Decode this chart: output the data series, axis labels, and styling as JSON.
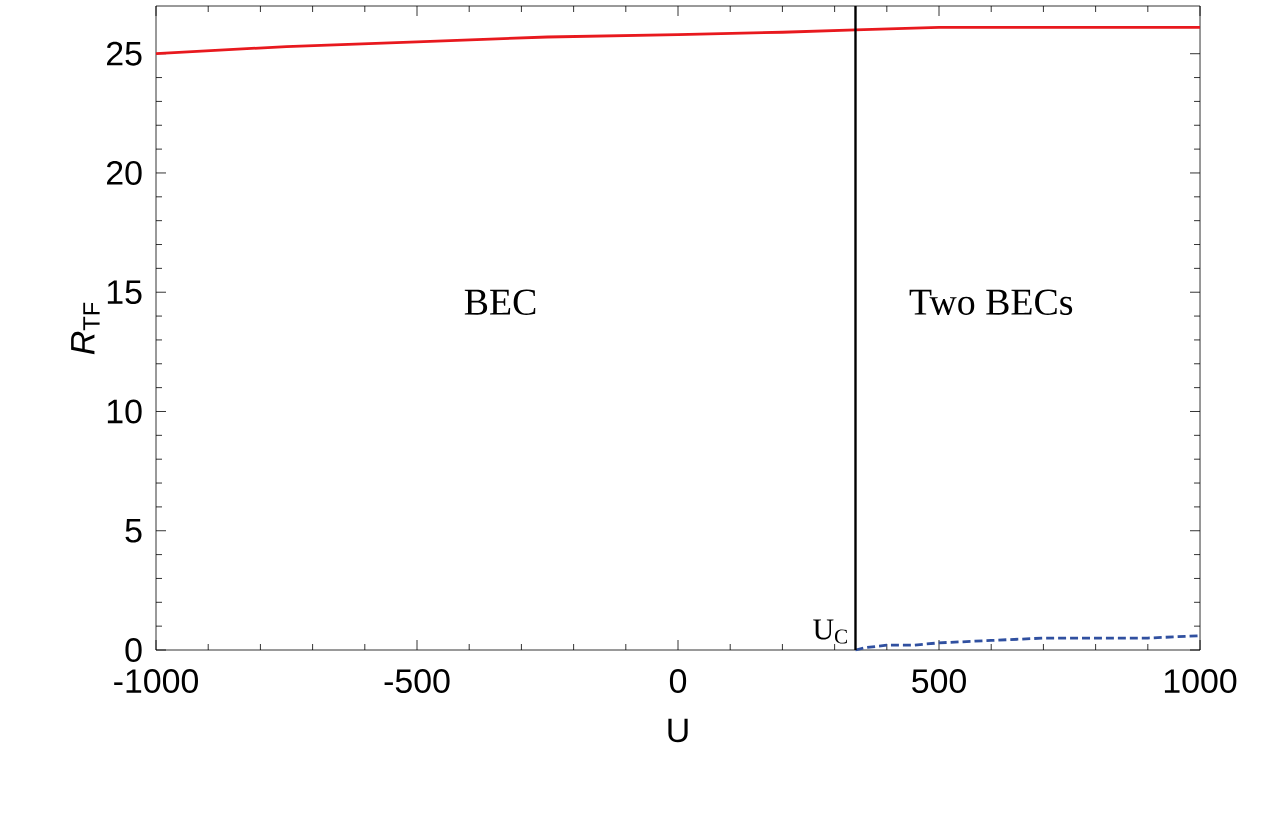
{
  "chart_data": {
    "type": "line",
    "xlabel": "U",
    "ylabel": "*R*$_{TF}$",
    "xlim": [
      -1000,
      1000
    ],
    "ylim": [
      0,
      27
    ],
    "xticks": [
      -1000,
      -500,
      0,
      500,
      1000
    ],
    "yticks": [
      0,
      5,
      10,
      15,
      20,
      25
    ],
    "series": [
      {
        "color": "#e8191e",
        "x": [
          -1000,
          -750,
          -500,
          -250,
          0,
          200,
          340,
          500,
          750,
          1000
        ],
        "values": [
          25.0,
          25.3,
          25.5,
          25.7,
          25.8,
          25.9,
          26.0,
          26.1,
          26.1,
          26.1
        ]
      },
      {
        "color": "#3050a0",
        "line_style": "dashed",
        "x": [
          340,
          360,
          400,
          450,
          500,
          600,
          700,
          800,
          900,
          1000
        ],
        "values": [
          0.0,
          0.1,
          0.2,
          0.2,
          0.3,
          0.4,
          0.5,
          0.5,
          0.5,
          0.6
        ]
      }
    ],
    "ref_lines": [
      {
        "axis": "x",
        "value": 340,
        "label": "U$_{C}$",
        "color": "#000000"
      }
    ],
    "annotations": [
      "BEC",
      "Two BECs"
    ]
  }
}
